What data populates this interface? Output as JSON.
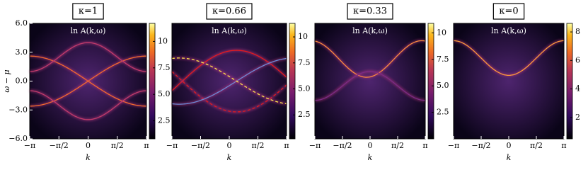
{
  "chart_data": [
    {
      "type": "heatmap",
      "title": "κ=1",
      "annotation": "ln A(k,ω)",
      "xlabel": "k",
      "ylabel": "ω − μ",
      "xlim": [
        -3.14159,
        3.14159
      ],
      "xticks": [
        {
          "value": -3.14159,
          "label": "−π"
        },
        {
          "value": -1.5708,
          "label": "−π/2"
        },
        0,
        {
          "value": 1.5708,
          "label": "π/2"
        },
        {
          "value": 3.14159,
          "label": "π"
        }
      ],
      "ylim": [
        -6,
        6
      ],
      "yticks": [
        {
          "value": -6,
          "label": "−6.0"
        },
        {
          "value": -3,
          "label": "−3.0"
        },
        {
          "value": 0,
          "label": "0.0"
        },
        {
          "value": 3,
          "label": "3.0"
        },
        {
          "value": 6,
          "label": "6.0"
        }
      ],
      "clim": [
        0.8,
        11.7
      ],
      "cticks": [
        2.5,
        {
          "value": 5,
          "label": "5.0"
        },
        7.5,
        10
      ]
    },
    {
      "type": "heatmap",
      "title": "κ=0.66",
      "annotation": "ln A(k,ω)",
      "xlabel": "k",
      "xlim": [
        -3.14159,
        3.14159
      ],
      "xticks": [
        {
          "value": -3.14159,
          "label": "−π"
        },
        {
          "value": -1.5708,
          "label": "−π/2"
        },
        0,
        {
          "value": 1.5708,
          "label": "π/2"
        },
        {
          "value": 3.14159,
          "label": "π"
        }
      ],
      "ylim": [
        -6,
        6
      ],
      "clim": [
        0.2,
        11.3
      ],
      "cticks": [
        2.5,
        {
          "value": 5,
          "label": "5.0"
        },
        7.5,
        10
      ]
    },
    {
      "type": "heatmap",
      "title": "κ=0.33",
      "annotation": "ln A(k,ω)",
      "xlabel": "k",
      "xlim": [
        -3.14159,
        3.14159
      ],
      "xticks": [
        {
          "value": -3.14159,
          "label": "−π"
        },
        {
          "value": -1.5708,
          "label": "−π/2"
        },
        0,
        {
          "value": 1.5708,
          "label": "π/2"
        },
        {
          "value": 3.14159,
          "label": "π"
        }
      ],
      "ylim": [
        -6,
        6
      ],
      "clim": [
        0,
        10.9
      ],
      "cticks": [
        2.5,
        {
          "value": 5,
          "label": "5.0"
        },
        7.5,
        10
      ]
    },
    {
      "type": "heatmap",
      "title": "κ=0",
      "annotation": "ln A(k,ω)",
      "xlabel": "k",
      "xlim": [
        -3.14159,
        3.14159
      ],
      "xticks": [
        {
          "value": -3.14159,
          "label": "−π"
        },
        {
          "value": -1.5708,
          "label": "−π/2"
        },
        0,
        {
          "value": 1.5708,
          "label": "π/2"
        },
        {
          "value": 3.14159,
          "label": "π"
        }
      ],
      "ylim": [
        -6,
        6
      ],
      "clim": [
        0.5,
        8.6
      ],
      "cticks": [
        2,
        4,
        6,
        8
      ]
    }
  ]
}
